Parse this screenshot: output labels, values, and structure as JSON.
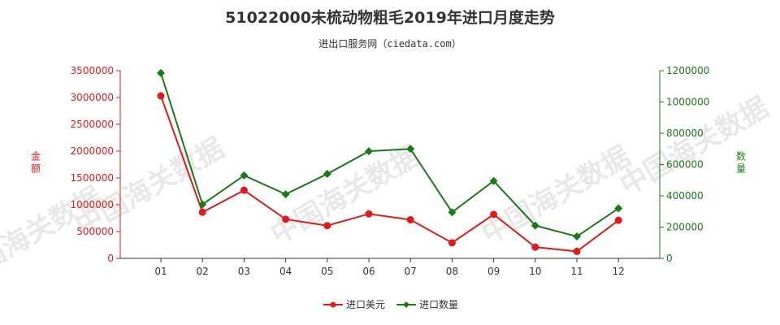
{
  "chart_data": {
    "type": "line",
    "title": "51022000未梳动物粗毛2019年进口月度走势",
    "subtitle": "进出口服务网（ciedata.com）",
    "categories": [
      "01",
      "02",
      "03",
      "04",
      "05",
      "06",
      "07",
      "08",
      "09",
      "10",
      "11",
      "12"
    ],
    "y_left": {
      "label": "金额",
      "ylim": [
        0,
        3500000
      ],
      "ticks": [
        0,
        500000,
        1000000,
        1500000,
        2000000,
        2500000,
        3000000,
        3500000
      ]
    },
    "y_right": {
      "label": "数量",
      "ylim": [
        0,
        1200000
      ],
      "ticks": [
        0,
        200000,
        400000,
        600000,
        800000,
        1000000,
        1200000
      ]
    },
    "series": [
      {
        "name": "进口美元",
        "axis": "left",
        "color": "#e31a1c",
        "marker": "circle",
        "values": [
          3030000,
          860000,
          1270000,
          730000,
          610000,
          830000,
          720000,
          290000,
          820000,
          210000,
          130000,
          710000
        ]
      },
      {
        "name": "进口数量",
        "axis": "right",
        "color": "#1a7a1a",
        "marker": "diamond",
        "values": [
          1185000,
          345000,
          530000,
          410000,
          540000,
          685000,
          700000,
          295000,
          495000,
          210000,
          140000,
          320000
        ]
      }
    ],
    "grid": false,
    "legend": "bottom-center",
    "watermark": "中国海关数据"
  }
}
